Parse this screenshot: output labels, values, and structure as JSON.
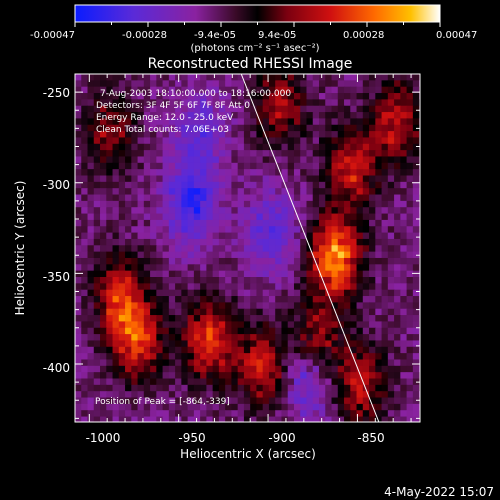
{
  "colorbar": {
    "tick_labels": [
      "-0.00047",
      "-0.00028",
      "-9.4e-05",
      "9.4e-05",
      "0.00028",
      "0.00047"
    ],
    "units_label": "(photons cm⁻² s⁻¹ asec⁻²)",
    "colors": [
      "#0a1cff",
      "#5a2ad8",
      "#8a22a0",
      "#3a0a28",
      "#000000",
      "#7a0010",
      "#d01010",
      "#ff6a00",
      "#ffc000",
      "#ffffff"
    ]
  },
  "plot": {
    "title": "Reconstructed RHESSI Image",
    "xlabel": "Heliocentric X (arcsec)",
    "ylabel": "Heliocentric Y (arcsec)",
    "xticks": [
      "-1000",
      "-950",
      "-900",
      "-850"
    ],
    "yticks": [
      "-250",
      "-300",
      "-350",
      "-400"
    ],
    "info_lines": [
      "7-Aug-2003 18:10:00.000  to 18:16:00.000",
      "Detectors: 3F 4F 5F 6F 7F 8F  Att 0",
      "Energy Range: 12.0 - 25.0 keV",
      "Clean     Total counts: 7.06E+03"
    ],
    "peak_label": "Position of Peak = [-864,-339]"
  },
  "footer": {
    "timestamp": "4-May-2022 15:07"
  },
  "chart_data": {
    "type": "heatmap",
    "title": "Reconstructed RHESSI Image",
    "xlabel": "Heliocentric X (arcsec)",
    "ylabel": "Heliocentric Y (arcsec)",
    "xlim": [
      -1008,
      -815
    ],
    "ylim": [
      -432,
      -240
    ],
    "colorbar_range": [
      -0.00047,
      0.00047
    ],
    "peak_position": [
      -864,
      -339
    ],
    "limb_line": [
      [
        -915,
        -240
      ],
      [
        -838,
        -432
      ]
    ],
    "hot_regions": [
      {
        "center": [
          -864,
          -339
        ],
        "value": 0.00047
      },
      {
        "center": [
          -875,
          -385
        ],
        "value": 0.00028
      },
      {
        "center": [
          -855,
          -290
        ],
        "value": 0.0003
      },
      {
        "center": [
          -975,
          -385
        ],
        "value": 0.00035
      },
      {
        "center": [
          -985,
          -360
        ],
        "value": 0.0003
      },
      {
        "center": [
          -935,
          -385
        ],
        "value": 0.00035
      },
      {
        "center": [
          -990,
          -270
        ],
        "value": 0.00022
      },
      {
        "center": [
          -850,
          -410
        ],
        "value": 0.00028
      },
      {
        "center": [
          -895,
          -255
        ],
        "value": 0.00025
      },
      {
        "center": [
          -905,
          -400
        ],
        "value": 0.0003
      },
      {
        "center": [
          -830,
          -265
        ],
        "value": 0.00028
      }
    ],
    "cold_regions": [
      {
        "center": [
          -945,
          -310
        ],
        "value": -0.00028
      },
      {
        "center": [
          -900,
          -325
        ],
        "value": -0.0002
      },
      {
        "center": [
          -880,
          -405
        ],
        "value": -0.00025
      },
      {
        "center": [
          -940,
          -270
        ],
        "value": -0.00018
      }
    ]
  }
}
